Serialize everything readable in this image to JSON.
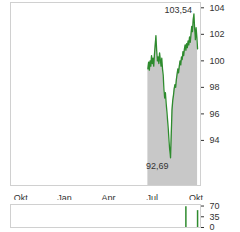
{
  "chart_data": [
    {
      "type": "area",
      "color": "#2e8b2e",
      "x": [
        8.7,
        8.75,
        8.8,
        8.85,
        8.9,
        8.95,
        9.0,
        9.05,
        9.1,
        9.15,
        9.2,
        9.25,
        9.3,
        9.35,
        9.4,
        9.45,
        9.5,
        9.55,
        9.6,
        9.65,
        9.7,
        9.75,
        9.8,
        9.85,
        9.9,
        9.95,
        10.0,
        10.05,
        10.1,
        10.15,
        10.2,
        10.25,
        10.3,
        10.35,
        10.4,
        10.45,
        10.5,
        10.55,
        10.6,
        10.65,
        10.7,
        10.75,
        10.8,
        10.85,
        10.9,
        10.95,
        11.0,
        11.05,
        11.1,
        11.15,
        11.2,
        11.25,
        11.3,
        11.35,
        11.4,
        11.45,
        11.5,
        11.55,
        11.6,
        11.65,
        11.7,
        11.75,
        11.8,
        11.85,
        11.9,
        11.95,
        12.0,
        12.05,
        12.1
      ],
      "values": [
        99.4,
        99.9,
        99.3,
        100.0,
        99.6,
        100.4,
        99.8,
        100.2,
        99.6,
        100.5,
        101.2,
        101.9,
        100.8,
        100.0,
        100.3,
        99.8,
        100.6,
        100.1,
        99.6,
        100.2,
        99.4,
        98.9,
        97.8,
        97.2,
        97.6,
        96.8,
        96.2,
        95.5,
        94.8,
        93.9,
        93.2,
        92.69,
        94.5,
        96.3,
        97.0,
        97.4,
        97.9,
        98.2,
        98.0,
        98.6,
        99.0,
        99.4,
        99.1,
        99.6,
        100.0,
        99.7,
        100.3,
        100.1,
        100.7,
        100.4,
        100.9,
        101.2,
        100.8,
        101.3,
        101.0,
        101.5,
        101.2,
        101.8,
        101.4,
        102.0,
        102.6,
        102.2,
        103.1,
        103.54,
        102.4,
        101.6,
        102.5,
        101.8,
        100.9
      ],
      "xlim": [
        -0.7,
        12.3
      ],
      "xticks": [
        {
          "value": 0,
          "label": "Okt"
        },
        {
          "value": 3,
          "label": "Jan"
        },
        {
          "value": 6,
          "label": "Apr"
        },
        {
          "value": 9,
          "label": "Jul"
        },
        {
          "value": 12,
          "label": "Okt"
        }
      ],
      "ylim": [
        90.6,
        104.4
      ],
      "yticks": [
        94,
        96,
        98,
        100,
        102,
        104
      ],
      "annotations": [
        {
          "x": 11.85,
          "y": 103.54,
          "label": "103,54"
        },
        {
          "x": 10.25,
          "y": 92.69,
          "label": "92,69"
        }
      ]
    },
    {
      "type": "bar",
      "color": "#2e8b2e",
      "x": [
        11.3,
        12.1
      ],
      "values": [
        68,
        55
      ],
      "xlim": [
        -0.7,
        12.3
      ],
      "ylim": [
        0,
        75
      ],
      "yticks": [
        0,
        35,
        70
      ],
      "tick_labels": "y"
    }
  ]
}
